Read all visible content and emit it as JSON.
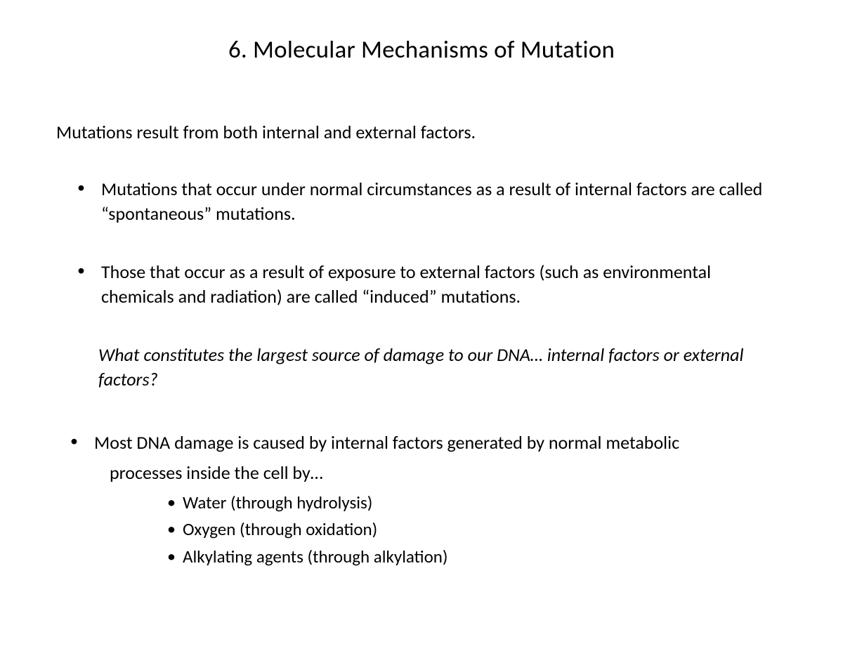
{
  "slide": {
    "title": "6. Molecular Mechanisms of Mutation",
    "intro": "Mutations result from both internal and external factors.",
    "bullets_a": [
      "Mutations that occur under normal circumstances as a result of internal factors are called “spontaneous” mutations.",
      "Those that occur as a result of exposure to external factors  (such as environmental chemicals and radiation) are called  “induced” mutations."
    ],
    "question": "What constitutes the largest source of  damage to our DNA… internal factors or external  factors?",
    "bullet_b_lead": "Most DNA damage is caused by internal factors generated by normal metabolic",
    "bullet_b_cont": "processes inside the cell  by…",
    "sub_bullets": [
      "Water (through hydrolysis)",
      "Oxygen (through oxidation)",
      "Alkylating agents (through alkylation)"
    ]
  },
  "style": {
    "background_color": "#ffffff",
    "text_color": "#000000",
    "title_fontsize": 35,
    "body_fontsize": 26,
    "sub_fontsize": 25,
    "font_family": "Calibri"
  }
}
